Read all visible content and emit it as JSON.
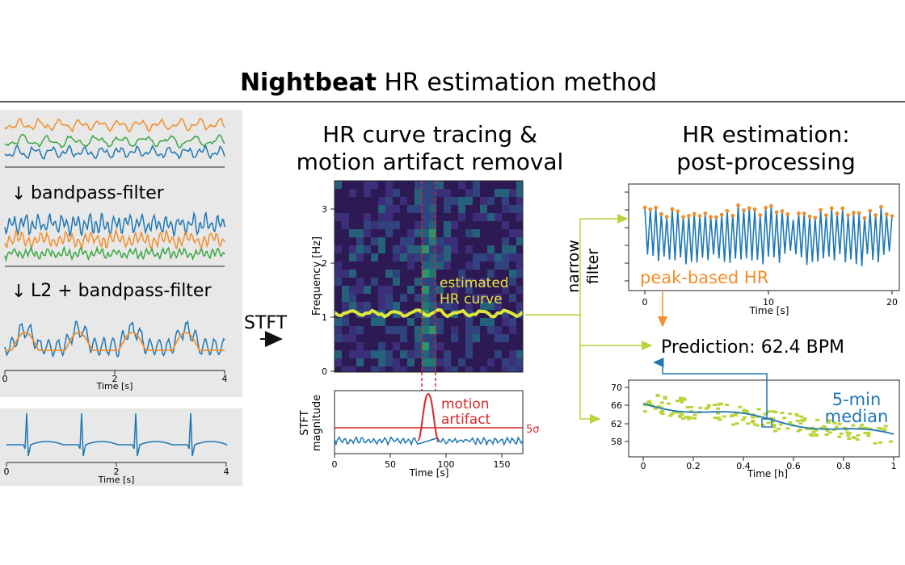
{
  "title": {
    "bold": "Nightbeat",
    "rest": " HR estimation method"
  },
  "left": {
    "step1": "bandpass-filter",
    "step2": "L2 + bandpass-filter",
    "axis_ticks": [
      "0",
      "2",
      "4"
    ],
    "axis_label": "Time [s]"
  },
  "stft_label": "STFT",
  "middle": {
    "heading": [
      "HR curve tracing &",
      "motion artifact removal"
    ],
    "spectrogram": {
      "ylabel": "Frequency [Hz]",
      "yticks": [
        "0",
        "1",
        "2",
        "3"
      ],
      "annotation": [
        "estimated",
        "HR curve"
      ]
    },
    "magnitude": {
      "ylabel": [
        "STFT",
        "magnitude"
      ],
      "annotation": [
        "motion",
        "artifact"
      ],
      "threshold_label": "5σ",
      "xticks": [
        "0",
        "50",
        "100",
        "150"
      ],
      "xlabel": "Time [s]"
    }
  },
  "narrow_filter": [
    "narrow",
    "filter"
  ],
  "right": {
    "heading": [
      "HR estimation:",
      "post-processing"
    ],
    "peak_plot": {
      "annotation": "peak-based HR",
      "xticks": [
        "0",
        "10",
        "20"
      ],
      "xlabel": "Time [s]"
    },
    "prediction": "Prediction: 62.4 BPM",
    "median_plot": {
      "annotation": [
        "5-min",
        "median"
      ],
      "yticks": [
        "58",
        "62",
        "66",
        "70"
      ],
      "xticks": [
        "0",
        "0.2",
        "0.4",
        "0.6",
        "0.8",
        "1"
      ],
      "xlabel": "Time [h]"
    }
  },
  "colors": {
    "orange": "#f28e2b",
    "blue": "#1f77b4",
    "green": "#3aa745",
    "yellowgreen": "#b8d439",
    "red": "#d62728",
    "panel_bg": "#e8e8e8"
  }
}
